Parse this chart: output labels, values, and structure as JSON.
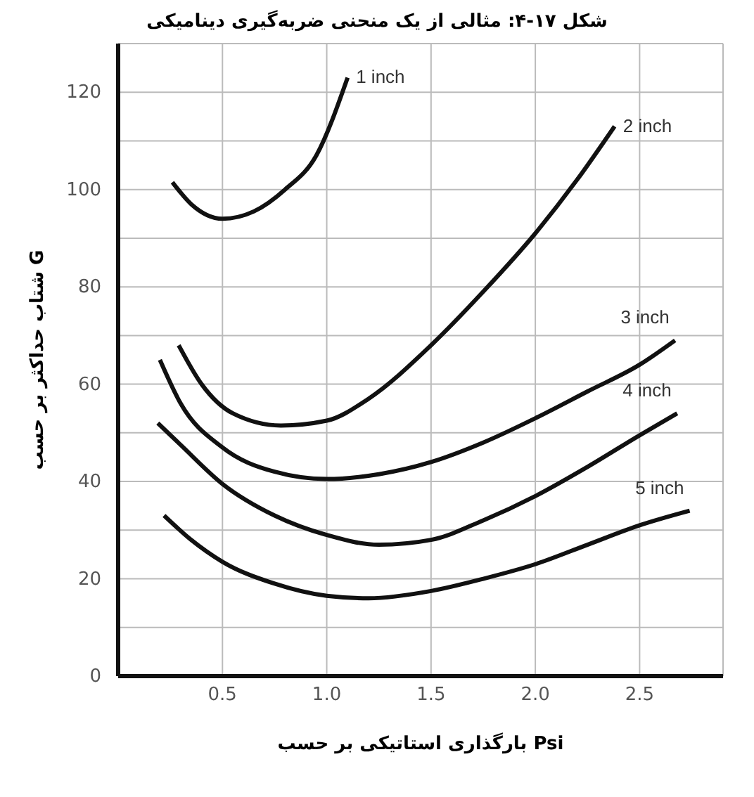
{
  "chart_data": {
    "type": "line",
    "title": "شکل ۱۷-۴: مثالی از یک منحنی ضربه‌گیری دینامیکی",
    "xlabel": "بارگذاری استاتیکی بر حسب Psi",
    "ylabel": "شتاب حداکثر بر حسب G",
    "series": [
      {
        "name": "1 inch",
        "color": "#111111",
        "x": [
          0.26,
          0.35,
          0.5,
          0.65,
          0.8,
          0.95,
          1.1
        ],
        "values": [
          101.5,
          97,
          94,
          95.5,
          100,
          107,
          123
        ]
      },
      {
        "name": "2 inch",
        "color": "#111111",
        "x": [
          0.29,
          0.4,
          0.55,
          0.78,
          1.0,
          1.2,
          1.5,
          1.75,
          2.0,
          2.2,
          2.38
        ],
        "values": [
          68,
          60,
          54,
          51.5,
          52.5,
          57,
          68,
          79,
          91,
          102,
          113
        ]
      },
      {
        "name": "3 inch",
        "color": "#111111",
        "x": [
          0.2,
          0.3,
          0.5,
          0.75,
          1.0,
          1.25,
          1.5,
          1.75,
          2.0,
          2.25,
          2.5,
          2.67
        ],
        "values": [
          65,
          56,
          47,
          42,
          40.5,
          41.5,
          44,
          48,
          53,
          58.5,
          64,
          69
        ]
      },
      {
        "name": "4 inch",
        "color": "#111111",
        "x": [
          0.19,
          0.3,
          0.5,
          0.75,
          1.0,
          1.25,
          1.5,
          1.75,
          2.0,
          2.25,
          2.5,
          2.68
        ],
        "values": [
          52,
          47.5,
          39.5,
          33,
          29,
          27,
          28,
          32,
          37,
          43,
          49.5,
          54
        ]
      },
      {
        "name": "5 inch",
        "color": "#111111",
        "x": [
          0.22,
          0.35,
          0.5,
          0.75,
          1.0,
          1.2,
          1.5,
          1.75,
          2.0,
          2.25,
          2.5,
          2.74
        ],
        "values": [
          33,
          28,
          23.5,
          19,
          16.5,
          16,
          17.5,
          20,
          23,
          27,
          31,
          34
        ]
      }
    ],
    "xlim": [
      0,
      2.9
    ],
    "ylim": [
      0,
      130
    ],
    "xticks": [
      0.5,
      {
        "value": 1,
        "label": "1.0"
      },
      1.5,
      {
        "value": 2,
        "label": "2.0"
      },
      2.5
    ],
    "yticks": [
      0,
      {
        "value": 10,
        "label": null
      },
      20,
      {
        "value": 30,
        "label": null
      },
      40,
      {
        "value": 50,
        "label": null
      },
      60,
      {
        "value": 70,
        "label": null
      },
      80,
      {
        "value": 90,
        "label": null
      },
      100,
      {
        "value": 110,
        "label": null
      },
      120,
      {
        "value": 130,
        "label": null
      }
    ],
    "grid": true,
    "marker": "none",
    "line_style": "solid",
    "legend": false
  }
}
